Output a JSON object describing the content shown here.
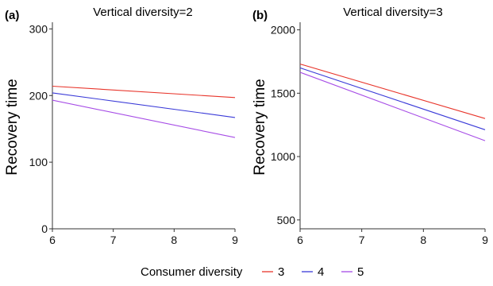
{
  "chart_data": [
    {
      "type": "line",
      "panel_label": "(a)",
      "title": "Vertical diversity=2",
      "xlabel": "",
      "ylabel": "Recovery time",
      "xlim": [
        6,
        9
      ],
      "ylim": [
        0,
        310
      ],
      "x_ticks": [
        "6",
        "7",
        "8",
        "9"
      ],
      "y_ticks": [
        "0",
        "100",
        "200",
        "300"
      ],
      "grid": false,
      "series": [
        {
          "name": "3",
          "color": "#e8352b",
          "x": [
            6,
            9
          ],
          "values": [
            214,
            197
          ]
        },
        {
          "name": "4",
          "color": "#3a3ad8",
          "x": [
            6,
            9
          ],
          "values": [
            204,
            167
          ]
        },
        {
          "name": "5",
          "color": "#a64ce6",
          "x": [
            6,
            9
          ],
          "values": [
            193,
            137
          ]
        }
      ]
    },
    {
      "type": "line",
      "panel_label": "(b)",
      "title": "Vertical diversity=3",
      "xlabel": "",
      "ylabel": "Recovery time",
      "xlim": [
        6,
        9
      ],
      "ylim": [
        430,
        2060
      ],
      "x_ticks": [
        "6",
        "7",
        "8",
        "9"
      ],
      "y_ticks": [
        "500",
        "1000",
        "1500",
        "2000"
      ],
      "grid": false,
      "series": [
        {
          "name": "3",
          "color": "#e8352b",
          "x": [
            6,
            9
          ],
          "values": [
            1730,
            1300
          ]
        },
        {
          "name": "4",
          "color": "#3a3ad8",
          "x": [
            6,
            9
          ],
          "values": [
            1700,
            1212
          ]
        },
        {
          "name": "5",
          "color": "#a64ce6",
          "x": [
            6,
            9
          ],
          "values": [
            1665,
            1125
          ]
        }
      ]
    }
  ],
  "legend": {
    "title": "Consumer diversity",
    "placement": "bottom",
    "items": [
      {
        "label": "3",
        "color": "#e8352b"
      },
      {
        "label": "4",
        "color": "#3a3ad8"
      },
      {
        "label": "5",
        "color": "#a64ce6"
      }
    ]
  }
}
